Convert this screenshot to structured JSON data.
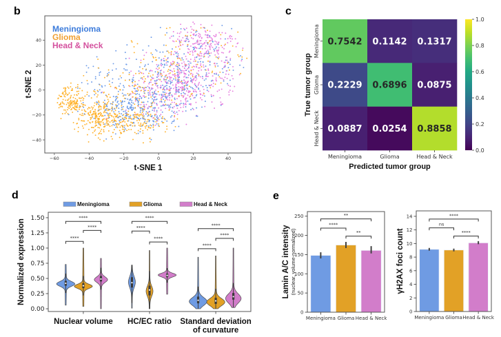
{
  "panels": {
    "b": {
      "label": "b"
    },
    "c": {
      "label": "c"
    },
    "d": {
      "label": "d"
    },
    "e": {
      "label": "e"
    }
  },
  "colors": {
    "Meningioma": "#6f9be3",
    "Glioma": "#e2a126",
    "Head & Neck": "#d27dca",
    "legend_text": {
      "Meningioma": "#3d7cdb",
      "Glioma": "#f0a032",
      "Head & Neck": "#d4519e"
    }
  },
  "chart_data": [
    {
      "panel": "b",
      "type": "scatter",
      "title": "",
      "xlabel": "t-SNE 1",
      "ylabel": "t-SNE 2",
      "xlim": [
        -65.5,
        53.5
      ],
      "ylim": [
        -50.5,
        59.5
      ],
      "xticks": [
        -60,
        -40,
        -20,
        0,
        20,
        40
      ],
      "xtick_labels": [
        "−60",
        "−40",
        "−20",
        "0",
        "20",
        "40"
      ],
      "yticks": [
        -40,
        -20,
        0,
        20,
        40
      ],
      "ytick_labels": [
        "−40",
        "−20",
        "0",
        "20",
        "40"
      ],
      "grid": false,
      "legend": {
        "placement": "top-left",
        "entries": [
          "Meningioma",
          "Glioma",
          "Head & Neck"
        ]
      },
      "series": [
        {
          "name": "Meningioma",
          "color": "#6b9ae8",
          "clusters": [
            {
              "x": -15,
              "y": -16,
              "sx": 13,
              "sy": 9,
              "n": 220
            },
            {
              "x": 3,
              "y": 3,
              "sx": 15,
              "sy": 15,
              "n": 260
            },
            {
              "x": 25,
              "y": 25,
              "sx": 13,
              "sy": 14,
              "n": 130
            },
            {
              "x": -30,
              "y": 5,
              "sx": 8,
              "sy": 8,
              "n": 40
            }
          ]
        },
        {
          "name": "Glioma",
          "color": "#ffb22c",
          "clusters": [
            {
              "x": -50,
              "y": -8,
              "sx": 4,
              "sy": 6,
              "n": 150
            },
            {
              "x": -34,
              "y": -22,
              "sx": 6.5,
              "sy": 7,
              "n": 220
            },
            {
              "x": -14,
              "y": -26,
              "sx": 9,
              "sy": 6,
              "n": 150
            },
            {
              "x": -12,
              "y": 2,
              "sx": 16,
              "sy": 14,
              "n": 140
            },
            {
              "x": 18,
              "y": 22,
              "sx": 17,
              "sy": 17,
              "n": 110
            }
          ]
        },
        {
          "name": "Head & Neck",
          "color": "#e77fdf",
          "clusters": [
            {
              "x": 13,
              "y": 8,
              "sx": 11,
              "sy": 11,
              "n": 270
            },
            {
              "x": 25,
              "y": 38,
              "sx": 10,
              "sy": 8,
              "n": 170
            },
            {
              "x": 0,
              "y": -6,
              "sx": 11,
              "sy": 11,
              "n": 110
            },
            {
              "x": 30,
              "y": 5,
              "sx": 10,
              "sy": 14,
              "n": 80
            }
          ]
        }
      ]
    },
    {
      "panel": "c",
      "type": "heatmap",
      "title": "",
      "xlabel": "Predicted tumor group",
      "ylabel": "True tumor group",
      "x_categories": [
        "Meningioma",
        "Glioma",
        "Head & Neck"
      ],
      "y_categories": [
        "Meningioma",
        "Glioma",
        "Head & Neck"
      ],
      "values": [
        [
          0.7542,
          0.1142,
          0.1317
        ],
        [
          0.2229,
          0.6896,
          0.0875
        ],
        [
          0.0887,
          0.0254,
          0.8858
        ]
      ],
      "value_labels": [
        [
          "0.7542",
          "0.1142",
          "0.1317"
        ],
        [
          "0.2229",
          "0.6896",
          "0.0875"
        ],
        [
          "0.0887",
          "0.0254",
          "0.8858"
        ]
      ],
      "colorbar": {
        "colormap": "viridis",
        "range": [
          0,
          1
        ],
        "ticks": [
          0,
          0.2,
          0.4,
          0.6,
          0.8,
          1.0
        ],
        "tick_labels": [
          "0.0",
          "0.2",
          "0.4",
          "0.6",
          "0.8",
          "1.0"
        ],
        "placement": "right"
      }
    },
    {
      "panel": "d",
      "type": "violin",
      "title": "",
      "xlabel": "",
      "ylabel": "Normalized expression",
      "categories": [
        "Nuclear volume",
        "HC/EC ratio",
        "Standard deviation of curvature"
      ],
      "category_label_lines": [
        [
          "Nuclear volume"
        ],
        [
          "HC/EC ratio"
        ],
        [
          "Standard deviation",
          "of curvature"
        ]
      ],
      "ylim": [
        -0.045,
        1.59
      ],
      "yticks": [
        0,
        0.25,
        0.5,
        0.75,
        1.0,
        1.25,
        1.5
      ],
      "ytick_labels": [
        "0.00",
        "0.25",
        "0.50",
        "0.75",
        "1.00",
        "1.25",
        "1.50"
      ],
      "legend": {
        "placement": "top",
        "entries": [
          "Meningioma",
          "Glioma",
          "Head & Neck"
        ]
      },
      "series": [
        {
          "name": "Meningioma",
          "color": "#6f9be3",
          "violins": [
            {
              "min": 0.06,
              "max": 0.73,
              "q1": 0.38,
              "median": 0.42,
              "q3": 0.46,
              "mode": 0.41,
              "sd": 0.04,
              "peak": 1.0
            },
            {
              "min": 0.01,
              "max": 0.72,
              "q1": 0.35,
              "median": 0.43,
              "q3": 0.52,
              "mode": 0.44,
              "sd": 0.09,
              "peak": 0.36
            },
            {
              "min": 0.0,
              "max": 0.85,
              "q1": 0.09,
              "median": 0.14,
              "q3": 0.2,
              "mode": 0.12,
              "sd": 0.065,
              "peak": 0.98
            }
          ]
        },
        {
          "name": "Glioma",
          "color": "#e2a126",
          "violins": [
            {
              "min": 0.04,
              "max": 1.0,
              "q1": 0.34,
              "median": 0.38,
              "q3": 0.42,
              "mode": 0.37,
              "sd": 0.035,
              "peak": 1.0
            },
            {
              "min": 0.0,
              "max": 0.96,
              "q1": 0.22,
              "median": 0.31,
              "q3": 0.38,
              "mode": 0.29,
              "sd": 0.08,
              "peak": 0.36
            },
            {
              "min": 0.0,
              "max": 0.87,
              "q1": 0.08,
              "median": 0.13,
              "q3": 0.18,
              "mode": 0.11,
              "sd": 0.06,
              "peak": 1.0
            }
          ]
        },
        {
          "name": "Head & Neck",
          "color": "#d27dca",
          "violins": [
            {
              "min": 0.0,
              "max": 0.83,
              "q1": 0.45,
              "median": 0.49,
              "q3": 0.54,
              "mode": 0.48,
              "sd": 0.045,
              "peak": 0.72
            },
            {
              "min": 0.24,
              "max": 1.0,
              "q1": 0.52,
              "median": 0.55,
              "q3": 0.58,
              "mode": 0.555,
              "sd": 0.03,
              "peak": 1.0
            },
            {
              "min": 0.02,
              "max": 1.0,
              "q1": 0.15,
              "median": 0.2,
              "q3": 0.26,
              "mode": 0.17,
              "sd": 0.075,
              "peak": 0.85
            }
          ]
        }
      ],
      "significance": [
        {
          "category": 0,
          "from": 0,
          "to": 1,
          "y": 1.11,
          "label": "****"
        },
        {
          "category": 0,
          "from": 1,
          "to": 2,
          "y": 1.29,
          "label": "****"
        },
        {
          "category": 0,
          "from": 0,
          "to": 2,
          "y": 1.44,
          "label": "****"
        },
        {
          "category": 1,
          "from": 0,
          "to": 1,
          "y": 1.28,
          "label": "****"
        },
        {
          "category": 1,
          "from": 1,
          "to": 2,
          "y": 1.1,
          "label": "****"
        },
        {
          "category": 1,
          "from": 0,
          "to": 2,
          "y": 1.44,
          "label": "****"
        },
        {
          "category": 2,
          "from": 0,
          "to": 1,
          "y": 0.99,
          "label": "****"
        },
        {
          "category": 2,
          "from": 1,
          "to": 2,
          "y": 1.16,
          "label": "****"
        },
        {
          "category": 2,
          "from": 0,
          "to": 2,
          "y": 1.32,
          "label": "****"
        }
      ]
    },
    {
      "panel": "e-left",
      "type": "bar",
      "title": "",
      "xlabel": "",
      "ylabel": "Lamin A/C intensity",
      "ylabel_sub": "(nuclear, volume-normalized)",
      "categories": [
        "Meningioma",
        "Glioma",
        "Head & Neck"
      ],
      "values": [
        148,
        175,
        161
      ],
      "error": [
        [
          140,
          156
        ],
        [
          167,
          183
        ],
        [
          153,
          172
        ]
      ],
      "ylim": [
        0,
        262
      ],
      "yticks": [
        0,
        50,
        100,
        150,
        200,
        250
      ],
      "ytick_labels": [
        "0",
        "50",
        "100",
        "150",
        "200",
        "250"
      ],
      "significance": [
        {
          "from": 0,
          "to": 1,
          "y": 219,
          "label": "****"
        },
        {
          "from": 1,
          "to": 2,
          "y": 198,
          "label": "**"
        },
        {
          "from": 0,
          "to": 2,
          "y": 243,
          "label": "**"
        }
      ]
    },
    {
      "panel": "e-right",
      "type": "bar",
      "title": "",
      "xlabel": "",
      "ylabel": "γH2AX foci count",
      "categories": [
        "Meningioma",
        "Glioma",
        "Head & Neck"
      ],
      "values": [
        9.15,
        9.05,
        10.1
      ],
      "error": [
        [
          8.95,
          9.35
        ],
        [
          8.85,
          9.25
        ],
        [
          9.9,
          10.35
        ]
      ],
      "ylim": [
        0,
        14.8
      ],
      "yticks": [
        0,
        2,
        4,
        6,
        8,
        10,
        12,
        14
      ],
      "ytick_labels": [
        "0",
        "2",
        "4",
        "6",
        "8",
        "10",
        "12",
        "14"
      ],
      "significance": [
        {
          "from": 0,
          "to": 1,
          "y": 12.3,
          "label": "ns"
        },
        {
          "from": 1,
          "to": 2,
          "y": 11.1,
          "label": "****"
        },
        {
          "from": 0,
          "to": 2,
          "y": 13.6,
          "label": "****"
        }
      ]
    }
  ]
}
